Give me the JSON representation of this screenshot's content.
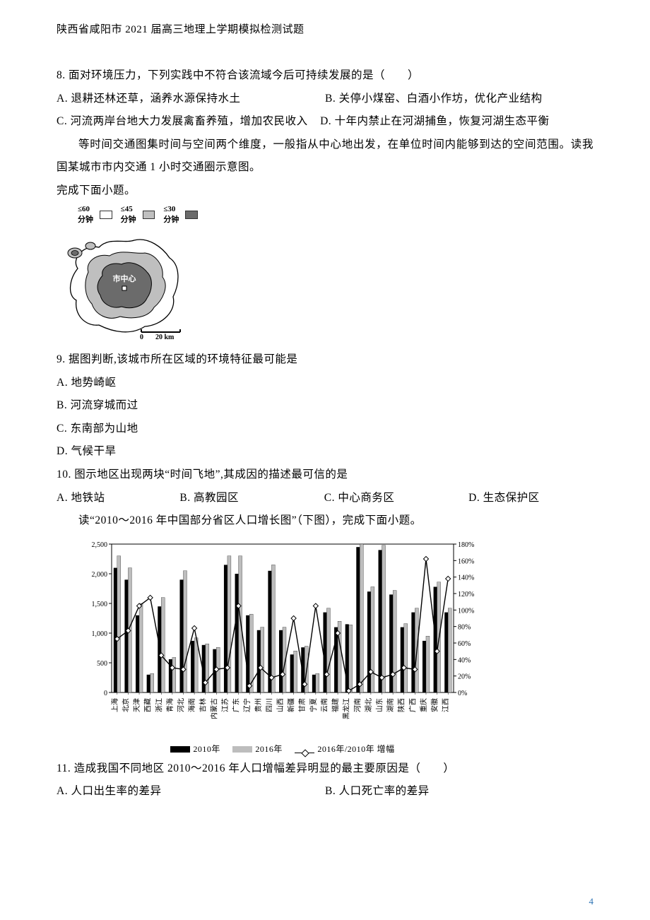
{
  "header": "陕西省咸阳市 2021 届高三地理上学期模拟检测试题",
  "page_number": "4",
  "q8": {
    "stem": "8. 面对环境压力，下列实践中不符合该流域今后可持续发展的是（　　）",
    "a": "A. 退耕还林还草，涵养水源保持水土",
    "b": "B. 关停小煤窑、白酒小作坊，优化产业结构",
    "c": "C. 河流两岸台地大力发展禽畜养殖，增加农民收入",
    "d": "D. 十年内禁止在河湖捕鱼，恢复河湖生态平衡"
  },
  "passage2": {
    "p1": "等时间交通图集时间与空间两个维度，一般指从中心地出发，在单位时间内能够到达的空间范围。读我国某城市市内交通 1 小时交通圈示意图。",
    "p2": "完成下面小题。"
  },
  "map": {
    "type": "map-schematic",
    "legend": [
      {
        "label": "≤60分钟",
        "fill": "#ffffff"
      },
      {
        "label": "≤45分钟",
        "fill": "#bfbfbf"
      },
      {
        "label": "≤30分钟",
        "fill": "#6b6b6b"
      }
    ],
    "center_label": "市中心",
    "scale_label_0": "0",
    "scale_label_1": "20 km",
    "outline_color": "#000000",
    "background": "#ffffff",
    "enclave_count": 2
  },
  "q9": {
    "stem": "9. 据图判断,该城市所在区域的环境特征最可能是",
    "a": "A. 地势崎岖",
    "b": "B. 河流穿城而过",
    "c": "C. 东南部为山地",
    "d": "D. 气候干旱"
  },
  "q10": {
    "stem": "10. 图示地区出现两块“时间飞地”,其成因的描述最可信的是",
    "a": "A. 地铁站",
    "b": "B. 高教园区",
    "c": "C. 中心商务区",
    "d": "D. 生态保护区"
  },
  "passage3": "读“2010～2016 年中国部分省区人口增长图”（下图），完成下面小题。",
  "chart": {
    "type": "bar+line",
    "title": "",
    "categories": [
      "上海",
      "北京",
      "天津",
      "西藏",
      "浙江",
      "青海",
      "河北",
      "海南",
      "吉林",
      "内蒙古",
      "江苏",
      "广东",
      "辽宁",
      "贵州",
      "四川",
      "山西",
      "新疆",
      "甘肃",
      "宁夏",
      "云南",
      "福建",
      "黑龙江",
      "河南",
      "湖北",
      "山东",
      "湖南",
      "陕西",
      "广西",
      "重庆",
      "安徽",
      "江西"
    ],
    "series": [
      {
        "name": "2010年",
        "type": "bar",
        "color": "#000000",
        "values": [
          2100,
          1900,
          1300,
          300,
          1450,
          560,
          1900,
          870,
          800,
          730,
          2150,
          2000,
          1300,
          1050,
          2050,
          1050,
          640,
          760,
          300,
          1350,
          1100,
          1150,
          2450,
          1700,
          2400,
          1650,
          1100,
          1350,
          870,
          1780,
          1350
        ]
      },
      {
        "name": "2016年",
        "type": "bar",
        "color": "#bdbdbd",
        "values": [
          2300,
          2100,
          1500,
          320,
          1600,
          590,
          2050,
          920,
          820,
          760,
          2300,
          2300,
          1320,
          1100,
          2150,
          1100,
          700,
          780,
          320,
          1420,
          1200,
          1140,
          2500,
          1780,
          2480,
          1720,
          1160,
          1420,
          950,
          1860,
          1420
        ]
      },
      {
        "name": "2016年/2010年 增幅",
        "type": "line",
        "color": "#000000",
        "marker": "diamond",
        "values": [
          0.65,
          0.75,
          1.05,
          1.15,
          0.45,
          0.3,
          0.28,
          0.78,
          0.12,
          0.28,
          0.3,
          1.05,
          0.08,
          0.3,
          0.18,
          0.22,
          0.9,
          0.1,
          1.05,
          0.22,
          0.72,
          0.02,
          0.1,
          0.25,
          0.18,
          0.22,
          0.3,
          0.28,
          1.62,
          0.5,
          1.38
        ]
      }
    ],
    "y_left": {
      "min": 0,
      "max": 2500,
      "step": 500,
      "ticks": [
        "0",
        "500",
        "1,000",
        "1,500",
        "2,000",
        "2,500"
      ]
    },
    "y_right": {
      "min": 0,
      "max": 1.8,
      "step": 0.2,
      "ticks": [
        "0%",
        "20%",
        "40%",
        "60%",
        "80%",
        "100%",
        "120%",
        "140%",
        "160%",
        "180%"
      ]
    },
    "grid_color": "#000000",
    "background": "#ffffff",
    "legend_labels": {
      "bar1": "2010年",
      "bar2": "2016年",
      "line": "2016年/2010年 增幅"
    }
  },
  "q11": {
    "stem": "11. 造成我国不同地区 2010～2016 年人口增幅差异明显的最主要原因是（　　）",
    "a": "A. 人口出生率的差异",
    "b": "B. 人口死亡率的差异"
  }
}
